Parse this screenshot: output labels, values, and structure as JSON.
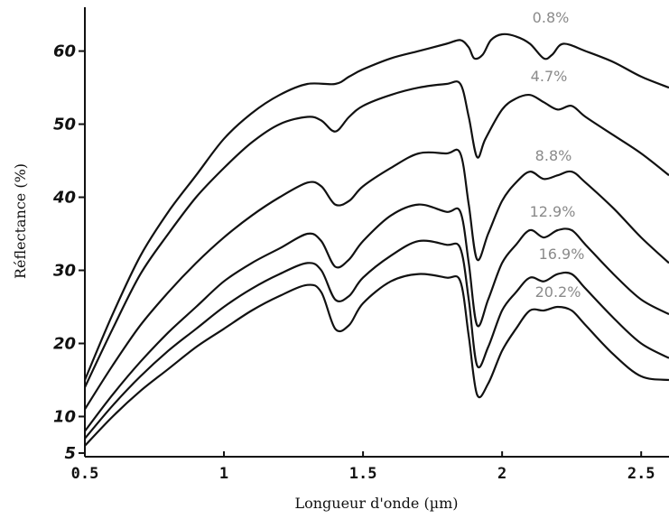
{
  "chart_data": {
    "type": "line",
    "xlabel": "Longueur d'onde (µm)",
    "ylabel": "Réflectance (%)",
    "xlim": [
      0.5,
      2.6
    ],
    "ylim": [
      4.5,
      66
    ],
    "x_ticks": [
      0.5,
      1,
      1.5,
      2,
      2.5
    ],
    "x_tick_labels": [
      "0.5",
      "1",
      "1.5",
      "2",
      "2.5"
    ],
    "y_ticks": [
      5,
      10,
      20,
      30,
      40,
      50,
      60
    ],
    "y_tick_labels": [
      "5",
      "10",
      "20",
      "30",
      "40",
      "50",
      "60"
    ],
    "grid": false,
    "legend": "inline labels at right",
    "series": [
      {
        "name": "0.8%",
        "points": [
          [
            0.5,
            15
          ],
          [
            0.6,
            24
          ],
          [
            0.7,
            32
          ],
          [
            0.8,
            38
          ],
          [
            0.9,
            43
          ],
          [
            1.0,
            48
          ],
          [
            1.1,
            51.5
          ],
          [
            1.2,
            54
          ],
          [
            1.3,
            55.5
          ],
          [
            1.4,
            55.5
          ],
          [
            1.45,
            56.5
          ],
          [
            1.5,
            57.5
          ],
          [
            1.6,
            59
          ],
          [
            1.7,
            60
          ],
          [
            1.8,
            61
          ],
          [
            1.85,
            61.5
          ],
          [
            1.88,
            60.5
          ],
          [
            1.9,
            59
          ],
          [
            1.93,
            59.5
          ],
          [
            1.96,
            61.5
          ],
          [
            2.0,
            62.3
          ],
          [
            2.05,
            62
          ],
          [
            2.1,
            61
          ],
          [
            2.15,
            59
          ],
          [
            2.18,
            59.5
          ],
          [
            2.22,
            61
          ],
          [
            2.3,
            60
          ],
          [
            2.4,
            58.5
          ],
          [
            2.5,
            56.5
          ],
          [
            2.6,
            55
          ]
        ]
      },
      {
        "name": "4.7%",
        "points": [
          [
            0.5,
            14
          ],
          [
            0.6,
            22
          ],
          [
            0.7,
            29.5
          ],
          [
            0.8,
            35
          ],
          [
            0.9,
            40
          ],
          [
            1.0,
            44
          ],
          [
            1.1,
            47.5
          ],
          [
            1.2,
            50
          ],
          [
            1.3,
            51
          ],
          [
            1.35,
            50.5
          ],
          [
            1.4,
            49
          ],
          [
            1.45,
            51
          ],
          [
            1.5,
            52.5
          ],
          [
            1.6,
            54
          ],
          [
            1.7,
            55
          ],
          [
            1.8,
            55.5
          ],
          [
            1.85,
            55.5
          ],
          [
            1.88,
            51
          ],
          [
            1.91,
            45.5
          ],
          [
            1.94,
            48
          ],
          [
            2.0,
            52
          ],
          [
            2.05,
            53.5
          ],
          [
            2.1,
            54
          ],
          [
            2.15,
            53
          ],
          [
            2.2,
            52
          ],
          [
            2.25,
            52.5
          ],
          [
            2.3,
            51
          ],
          [
            2.4,
            48.5
          ],
          [
            2.5,
            46
          ],
          [
            2.6,
            43
          ]
        ]
      },
      {
        "name": "8.8%",
        "points": [
          [
            0.5,
            11
          ],
          [
            0.6,
            17
          ],
          [
            0.7,
            22.5
          ],
          [
            0.8,
            27
          ],
          [
            0.9,
            31
          ],
          [
            1.0,
            34.5
          ],
          [
            1.1,
            37.5
          ],
          [
            1.2,
            40
          ],
          [
            1.3,
            42
          ],
          [
            1.35,
            41.5
          ],
          [
            1.4,
            39
          ],
          [
            1.45,
            39.5
          ],
          [
            1.5,
            41.5
          ],
          [
            1.6,
            44
          ],
          [
            1.7,
            46
          ],
          [
            1.8,
            46
          ],
          [
            1.85,
            46
          ],
          [
            1.88,
            39
          ],
          [
            1.91,
            31.5
          ],
          [
            1.95,
            35
          ],
          [
            2.0,
            39.5
          ],
          [
            2.05,
            42
          ],
          [
            2.1,
            43.5
          ],
          [
            2.15,
            42.5
          ],
          [
            2.2,
            43
          ],
          [
            2.25,
            43.5
          ],
          [
            2.3,
            42
          ],
          [
            2.4,
            38.5
          ],
          [
            2.5,
            34.5
          ],
          [
            2.6,
            31
          ]
        ]
      },
      {
        "name": "12.9%",
        "points": [
          [
            0.5,
            8
          ],
          [
            0.6,
            13
          ],
          [
            0.7,
            17.5
          ],
          [
            0.8,
            21.5
          ],
          [
            0.9,
            25
          ],
          [
            1.0,
            28.5
          ],
          [
            1.1,
            31
          ],
          [
            1.2,
            33
          ],
          [
            1.3,
            35
          ],
          [
            1.35,
            34
          ],
          [
            1.4,
            30.5
          ],
          [
            1.45,
            31.5
          ],
          [
            1.5,
            34
          ],
          [
            1.6,
            37.5
          ],
          [
            1.7,
            39
          ],
          [
            1.8,
            38
          ],
          [
            1.85,
            38
          ],
          [
            1.88,
            31
          ],
          [
            1.91,
            22.5
          ],
          [
            1.95,
            26
          ],
          [
            2.0,
            31
          ],
          [
            2.05,
            33.5
          ],
          [
            2.1,
            35.5
          ],
          [
            2.15,
            34.5
          ],
          [
            2.2,
            35.5
          ],
          [
            2.25,
            35.5
          ],
          [
            2.3,
            33.5
          ],
          [
            2.4,
            29.5
          ],
          [
            2.5,
            26
          ],
          [
            2.6,
            24
          ]
        ]
      },
      {
        "name": "16.9%",
        "points": [
          [
            0.5,
            7
          ],
          [
            0.6,
            11.5
          ],
          [
            0.7,
            15.5
          ],
          [
            0.8,
            19
          ],
          [
            0.9,
            22
          ],
          [
            1.0,
            25
          ],
          [
            1.1,
            27.5
          ],
          [
            1.2,
            29.5
          ],
          [
            1.3,
            31
          ],
          [
            1.35,
            30
          ],
          [
            1.4,
            26
          ],
          [
            1.45,
            26.5
          ],
          [
            1.5,
            29
          ],
          [
            1.6,
            32
          ],
          [
            1.7,
            34
          ],
          [
            1.8,
            33.5
          ],
          [
            1.85,
            33
          ],
          [
            1.88,
            26
          ],
          [
            1.91,
            17
          ],
          [
            1.95,
            19.5
          ],
          [
            2.0,
            24.5
          ],
          [
            2.05,
            27
          ],
          [
            2.1,
            29
          ],
          [
            2.15,
            28.5
          ],
          [
            2.2,
            29.5
          ],
          [
            2.25,
            29.5
          ],
          [
            2.3,
            27.5
          ],
          [
            2.4,
            23.5
          ],
          [
            2.5,
            20
          ],
          [
            2.6,
            18
          ]
        ]
      },
      {
        "name": "20.2%",
        "points": [
          [
            0.5,
            6
          ],
          [
            0.6,
            10
          ],
          [
            0.7,
            13.5
          ],
          [
            0.8,
            16.5
          ],
          [
            0.9,
            19.5
          ],
          [
            1.0,
            22
          ],
          [
            1.1,
            24.5
          ],
          [
            1.2,
            26.5
          ],
          [
            1.3,
            28
          ],
          [
            1.35,
            27
          ],
          [
            1.4,
            22
          ],
          [
            1.45,
            22.5
          ],
          [
            1.5,
            25.5
          ],
          [
            1.6,
            28.5
          ],
          [
            1.7,
            29.5
          ],
          [
            1.8,
            29
          ],
          [
            1.85,
            28.5
          ],
          [
            1.88,
            21
          ],
          [
            1.91,
            13
          ],
          [
            1.95,
            14.5
          ],
          [
            2.0,
            19
          ],
          [
            2.05,
            22
          ],
          [
            2.1,
            24.5
          ],
          [
            2.15,
            24.5
          ],
          [
            2.2,
            25
          ],
          [
            2.25,
            24.5
          ],
          [
            2.3,
            22.5
          ],
          [
            2.4,
            18.5
          ],
          [
            2.5,
            15.5
          ],
          [
            2.6,
            15
          ]
        ]
      }
    ]
  }
}
